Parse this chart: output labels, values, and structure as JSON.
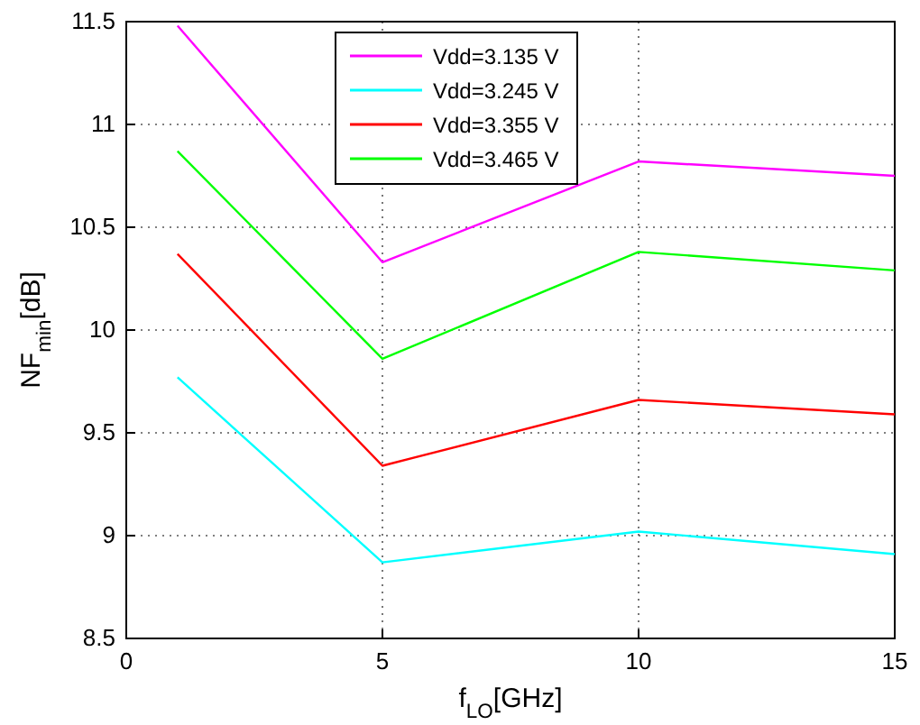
{
  "chart_data": {
    "type": "line",
    "xlabel": "f$_{LO}$[GHz]",
    "ylabel": "NF$_{min}$[dB]",
    "x": [
      1,
      5,
      10,
      15
    ],
    "series": [
      {
        "name": "Vdd=3.135 V",
        "color": "#ff00ff",
        "values": [
          11.48,
          10.33,
          10.82,
          10.75
        ]
      },
      {
        "name": "Vdd=3.245 V",
        "color": "#00ffff",
        "values": [
          9.77,
          8.87,
          9.02,
          8.91
        ]
      },
      {
        "name": "Vdd=3.355 V",
        "color": "#ff0000",
        "values": [
          10.37,
          9.34,
          9.66,
          9.59
        ]
      },
      {
        "name": "Vdd=3.465 V",
        "color": "#00ff00",
        "values": [
          10.87,
          9.86,
          10.38,
          10.29
        ]
      }
    ],
    "xlim": [
      0,
      15
    ],
    "xticks": [
      0,
      5,
      10,
      15
    ],
    "ylim": [
      8.5,
      11.5
    ],
    "yticks": [
      8.5,
      9,
      9.5,
      10,
      10.5,
      11,
      11.5
    ],
    "grid": true,
    "legend": "top",
    "marker": "none",
    "line_style": "solid"
  }
}
